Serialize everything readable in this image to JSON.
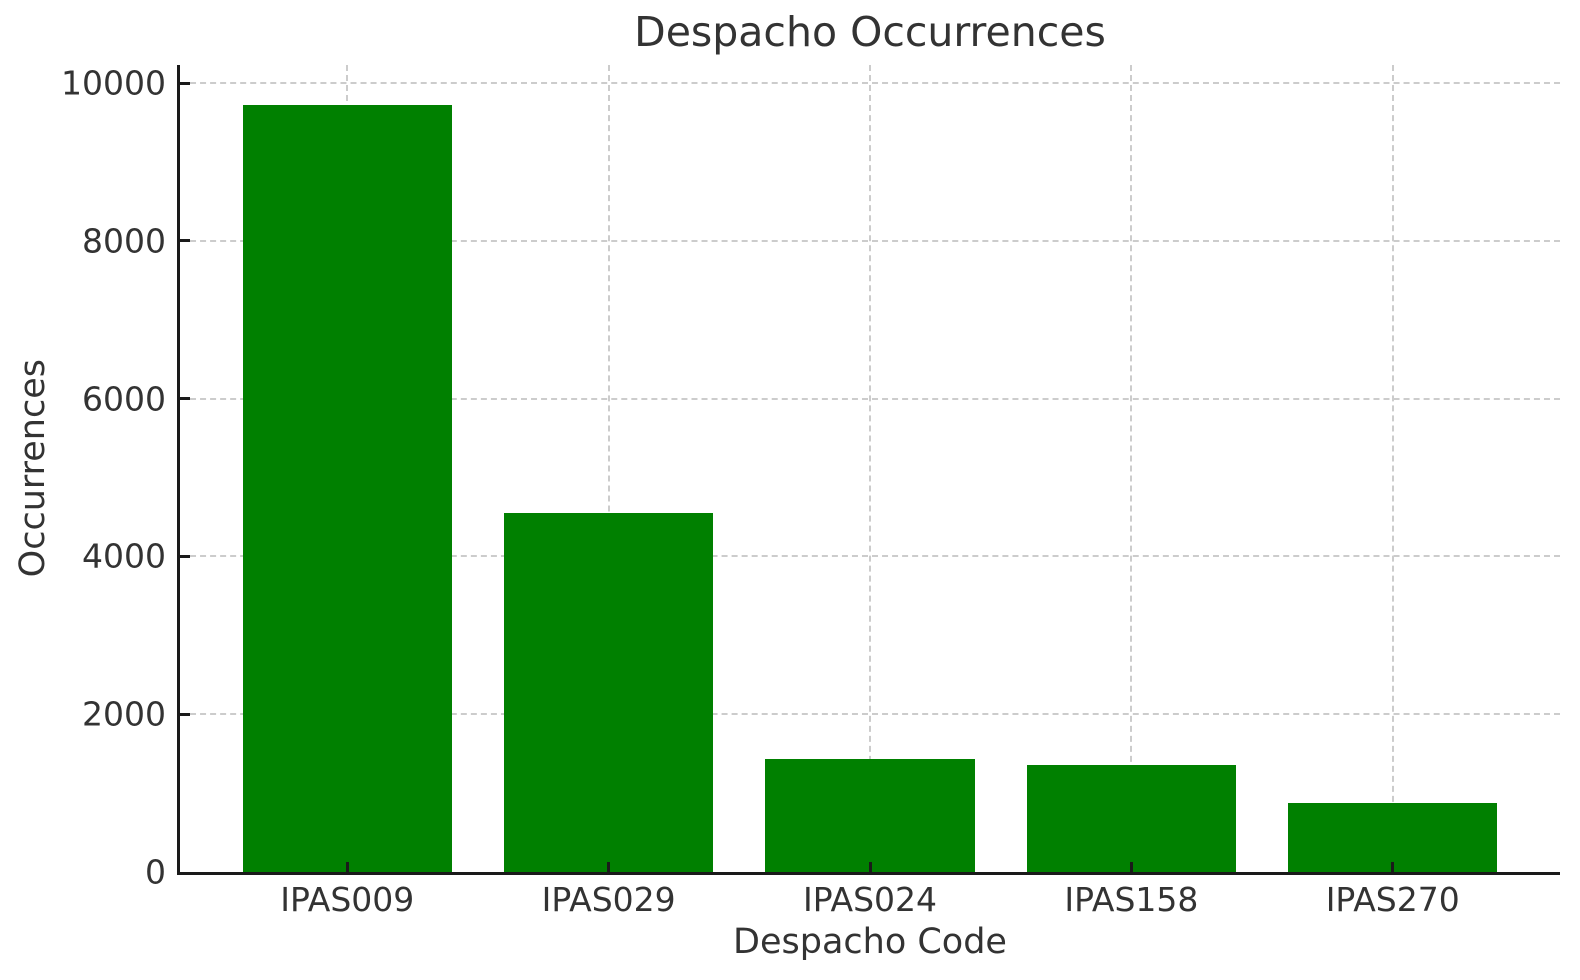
{
  "chart_data": {
    "type": "bar",
    "title": "Despacho Occurrences",
    "xlabel": "Despacho Code",
    "ylabel": "Occurrences",
    "categories": [
      "IPAS009",
      "IPAS029",
      "IPAS024",
      "IPAS158",
      "IPAS270"
    ],
    "values": [
      9720,
      4550,
      1430,
      1360,
      870
    ],
    "yticks": [
      0,
      2000,
      4000,
      6000,
      8000,
      10000
    ],
    "ylim": [
      0,
      10230
    ],
    "bar_color": "#008000",
    "grid": "dashed",
    "legend": "none",
    "grid_color": "#cccccc",
    "text_color": "#333333",
    "spine_color": "#1a1a1a"
  }
}
